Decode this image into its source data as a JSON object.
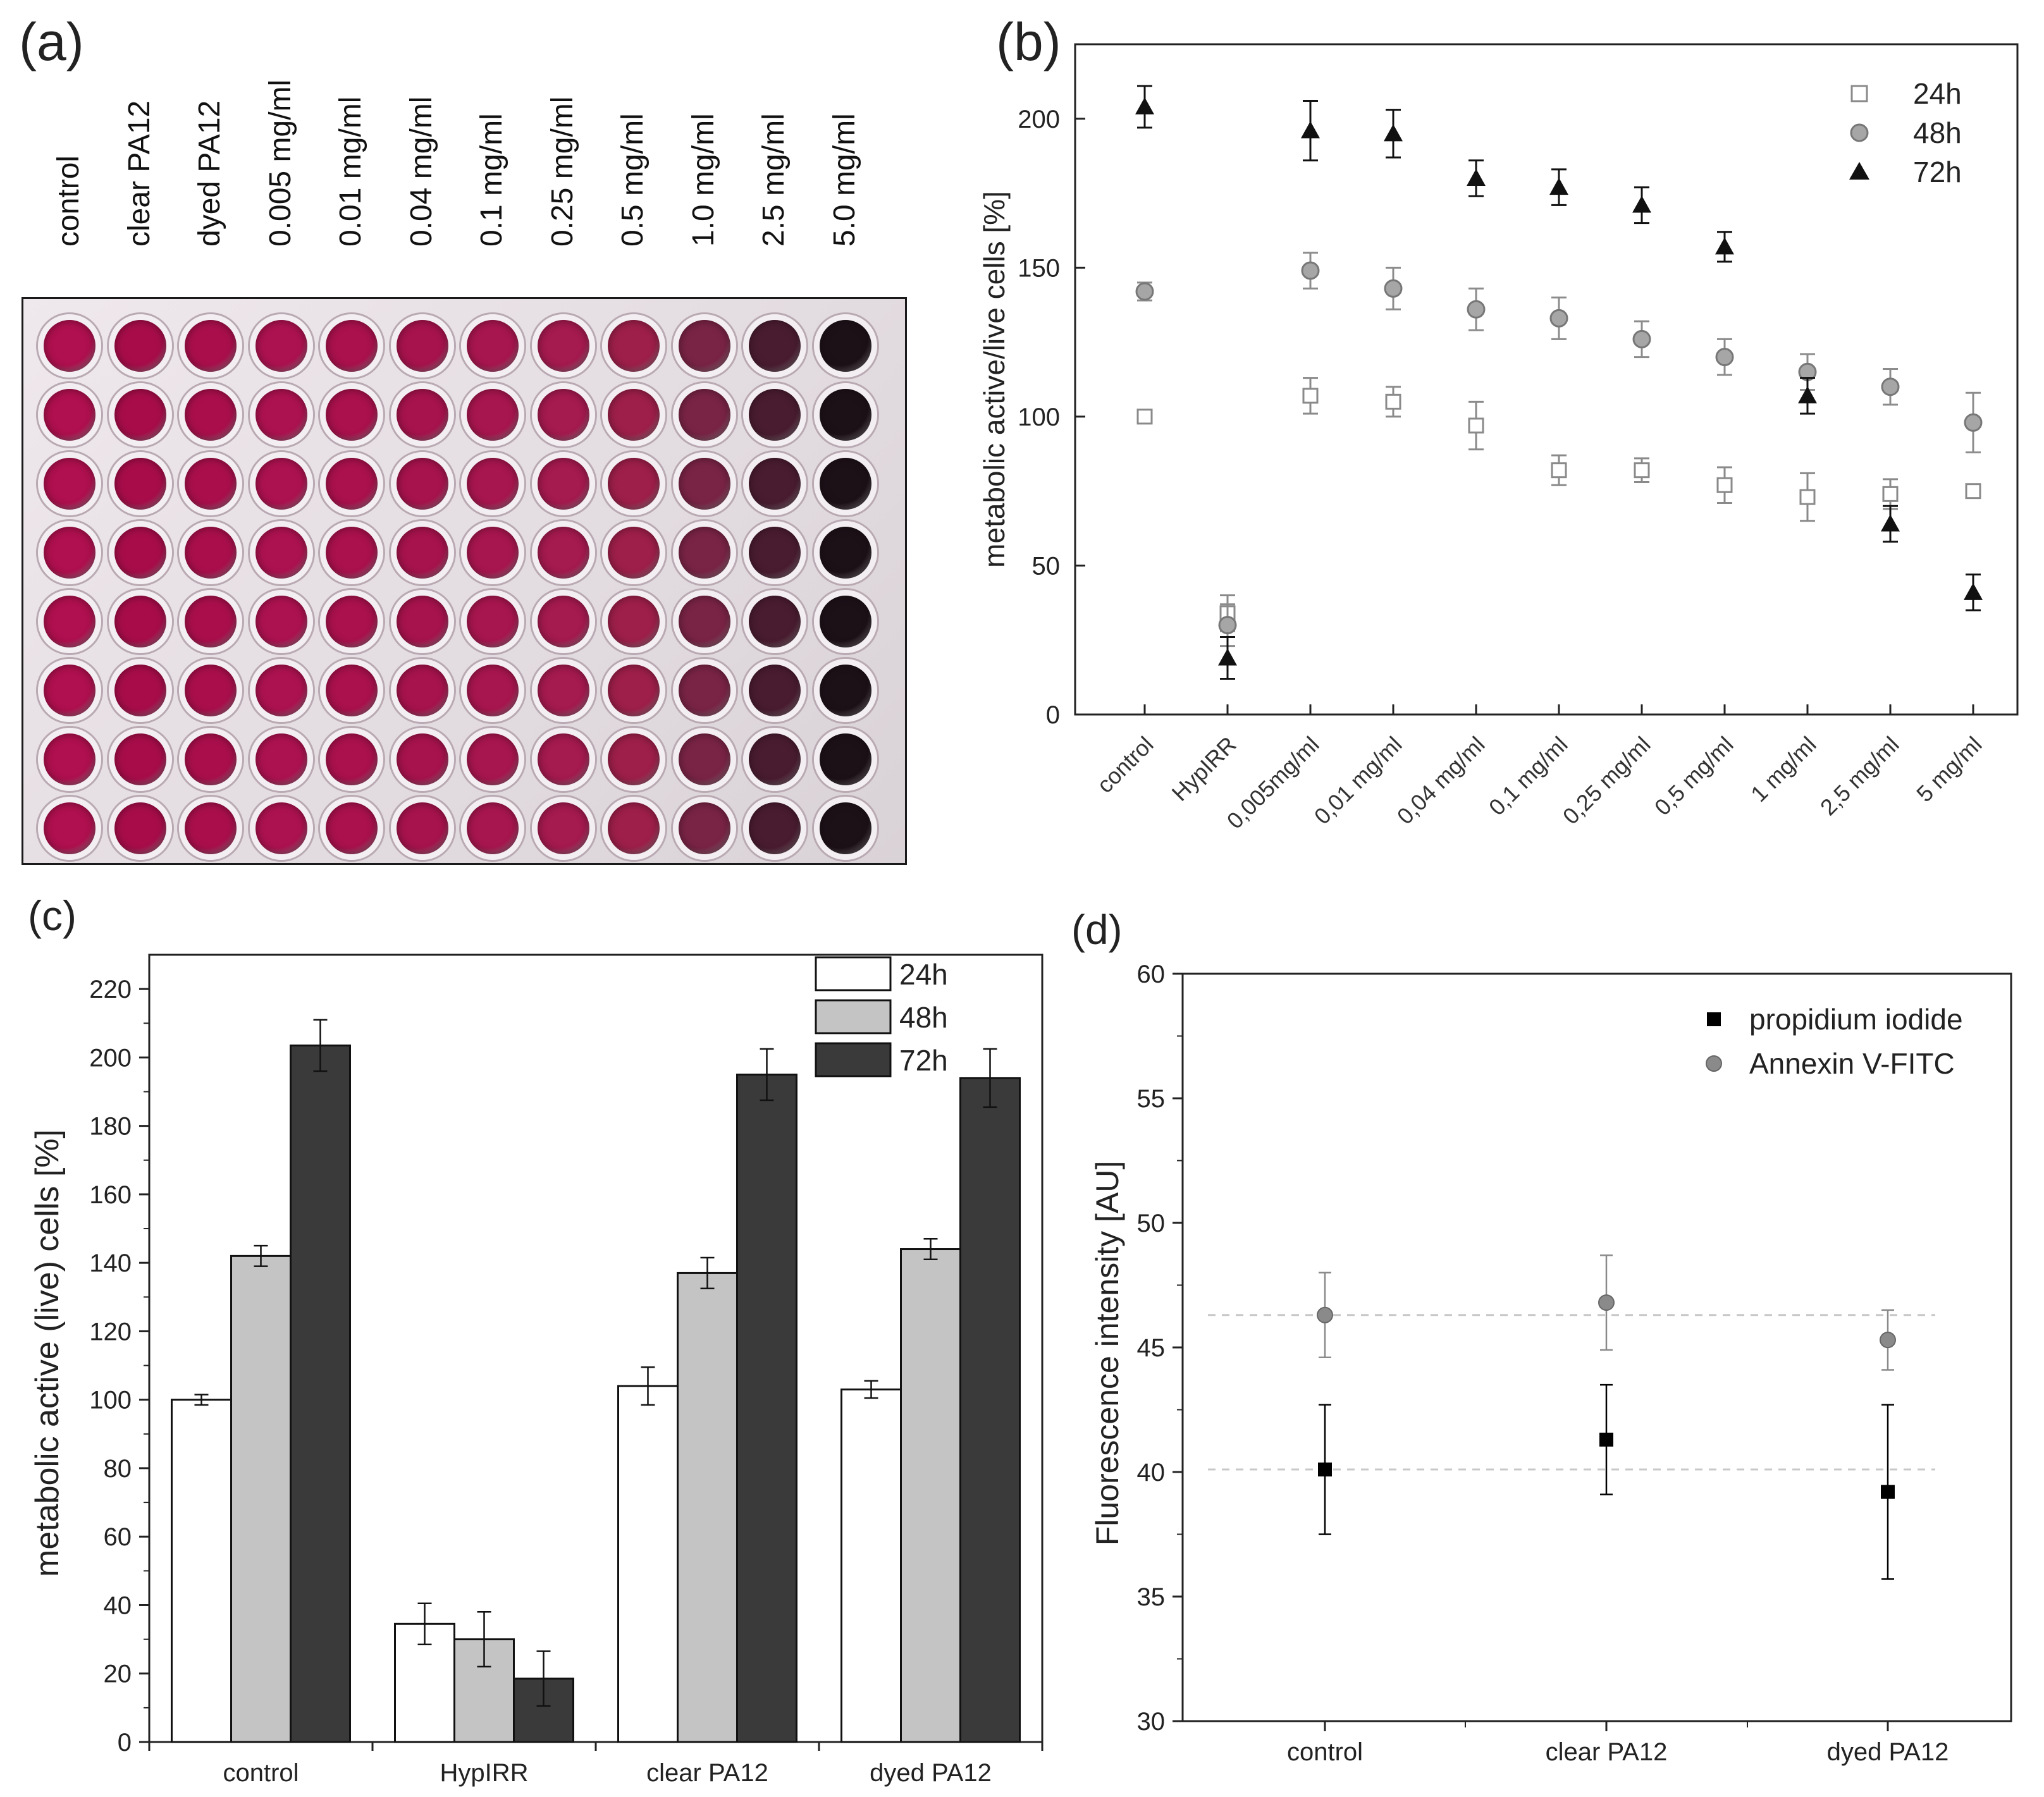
{
  "panels": {
    "a": {
      "label": "(a)",
      "columns": [
        {
          "label": "control",
          "color": "#b0104f"
        },
        {
          "label": "clear PA12",
          "color": "#a80d4a"
        },
        {
          "label": "dyed PA12",
          "color": "#aa0f4c"
        },
        {
          "label": "0.005  mg/ml",
          "color": "#ad1250"
        },
        {
          "label": "0.01    mg/ml",
          "color": "#aa114d"
        },
        {
          "label": "0.04    mg/ml",
          "color": "#a7134d"
        },
        {
          "label": "0.1      mg/ml",
          "color": "#a8164f"
        },
        {
          "label": "0.25    mg/ml",
          "color": "#a51a4f"
        },
        {
          "label": "0.5      mg/ml",
          "color": "#9e1f4a"
        },
        {
          "label": "1.0      mg/ml",
          "color": "#7a2445"
        },
        {
          "label": "2.5      mg/ml",
          "color": "#4a1c30"
        },
        {
          "label": "5.0      mg/ml",
          "color": "#1d1118"
        }
      ],
      "rows": 8
    },
    "b": {
      "label": "(b)"
    },
    "c": {
      "label": "(c)"
    },
    "d": {
      "label": "(d)"
    }
  },
  "chart_data": [
    {
      "panel": "b",
      "type": "scatter",
      "ylabel": "metabolic active/live cells [%]",
      "xlabel": "",
      "ylim": [
        0,
        225
      ],
      "yticks": [
        0,
        50,
        100,
        150,
        200
      ],
      "categories": [
        "control",
        "HypIRR",
        "0,005mg/ml",
        "0,01 mg/ml",
        "0,04 mg/ml",
        "0,1 mg/ml",
        "0,25 mg/ml",
        "0,5 mg/ml",
        "1 mg/ml",
        "2,5 mg/ml",
        "5 mg/ml"
      ],
      "series": [
        {
          "name": "24h",
          "marker": "square-open",
          "color": "#8a8a8a",
          "values": [
            100,
            34,
            107,
            105,
            97,
            82,
            82,
            77,
            73,
            74,
            75
          ],
          "errors": [
            2,
            6,
            6,
            5,
            8,
            5,
            4,
            6,
            8,
            5,
            2
          ]
        },
        {
          "name": "48h",
          "marker": "circle",
          "color": "#8c8c8c",
          "values": [
            142,
            30,
            149,
            143,
            136,
            133,
            126,
            120,
            115,
            110,
            98
          ],
          "errors": [
            3,
            7,
            6,
            7,
            7,
            7,
            6,
            6,
            6,
            6,
            10
          ]
        },
        {
          "name": "72h",
          "marker": "triangle",
          "color": "#111111",
          "values": [
            204,
            19,
            196,
            195,
            180,
            177,
            171,
            157,
            107,
            64,
            41
          ],
          "errors": [
            7,
            7,
            10,
            8,
            6,
            6,
            6,
            5,
            6,
            6,
            6
          ]
        }
      ],
      "legend": "top-right"
    },
    {
      "panel": "c",
      "type": "bar",
      "ylabel": "metabolic active (live) cells [%]",
      "xlabel": "",
      "ylim": [
        0,
        230
      ],
      "yticks": [
        0,
        20,
        40,
        60,
        80,
        100,
        120,
        140,
        160,
        180,
        200,
        220
      ],
      "categories": [
        "control",
        "HypIRR",
        "clear PA12",
        "dyed PA12"
      ],
      "series": [
        {
          "name": "24h",
          "color": "#ffffff",
          "values": [
            100,
            34.5,
            104,
            103
          ],
          "errors": [
            1.5,
            6,
            5.5,
            2.5
          ]
        },
        {
          "name": "48h",
          "color": "#c4c4c4",
          "values": [
            142,
            30,
            137,
            144
          ],
          "errors": [
            3,
            8,
            4.5,
            3
          ]
        },
        {
          "name": "72h",
          "color": "#3a3a3a",
          "values": [
            203.5,
            18.5,
            195,
            194
          ],
          "errors": [
            7.5,
            8,
            7.5,
            8.5
          ]
        }
      ],
      "legend": "top-right"
    },
    {
      "panel": "d",
      "type": "scatter",
      "ylabel": "Fluorescence intensity [AU]",
      "xlabel": "",
      "ylim": [
        30,
        60
      ],
      "yticks": [
        30,
        35,
        40,
        45,
        50,
        55,
        60
      ],
      "categories": [
        "control",
        "clear PA12",
        "dyed PA12"
      ],
      "series": [
        {
          "name": "propidium iodide",
          "marker": "square",
          "color": "#000000",
          "values": [
            40.1,
            41.3,
            39.2
          ],
          "errors": [
            2.6,
            2.2,
            3.5
          ]
        },
        {
          "name": "Annexin V-FITC",
          "marker": "circle",
          "color": "#8a8a8a",
          "values": [
            46.3,
            46.8,
            45.3
          ],
          "errors": [
            1.7,
            1.9,
            1.2
          ]
        }
      ],
      "reference_lines": [
        46.3,
        40.1
      ],
      "legend": "top-right"
    }
  ]
}
